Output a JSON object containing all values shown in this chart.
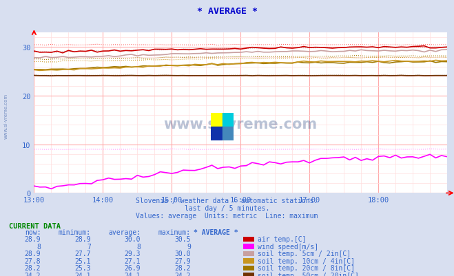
{
  "title": "* AVERAGE *",
  "title_color": "#0000cc",
  "bg_color": "#d8dff0",
  "plot_bg_color": "#ffffff",
  "watermark_text": "www.si-vreme.com",
  "subtitle_lines": [
    "Slovenia / weather data - automatic stations.",
    "last day / 5 minutes.",
    "Values: average  Units: metric  Line: maximum"
  ],
  "xmin": 0,
  "xmax": 72,
  "ymin": 0,
  "ymax": 33,
  "yticks": [
    0,
    10,
    20,
    30
  ],
  "xtick_labels": [
    "13:00",
    "14:00",
    "15:00",
    "16:00",
    "17:00",
    "18:00"
  ],
  "xtick_positions": [
    0,
    12,
    24,
    36,
    48,
    60
  ],
  "grid_minor_x_interval": 3,
  "grid_minor_y_interval": 2,
  "legend_colors": [
    "#cc0000",
    "#ff00ff",
    "#c8a0a0",
    "#c89620",
    "#a07800",
    "#703000"
  ],
  "legend_labels": [
    "air temp.[C]",
    "wind speed[m/s]",
    "soil temp. 5cm / 2in[C]",
    "soil temp. 10cm / 4in[C]",
    "soil temp. 20cm / 8in[C]",
    "soil temp. 50cm / 20in[C]"
  ],
  "table_headers": [
    "now:",
    "minimum:",
    "average:",
    "maximum:",
    "* AVERAGE *"
  ],
  "table_data": [
    [
      "28.9",
      "28.9",
      "30.0",
      "30.5"
    ],
    [
      "8",
      "7",
      "8",
      "9"
    ],
    [
      "28.9",
      "27.7",
      "29.3",
      "30.0"
    ],
    [
      "27.8",
      "25.1",
      "27.1",
      "27.9"
    ],
    [
      "28.2",
      "25.3",
      "26.9",
      "28.2"
    ],
    [
      "24.2",
      "24.1",
      "24.1",
      "24.2"
    ]
  ],
  "tick_color": "#3366cc",
  "text_color": "#3366cc",
  "grid_color_major": "#ffaaaa",
  "grid_color_minor": "#ffdddd"
}
